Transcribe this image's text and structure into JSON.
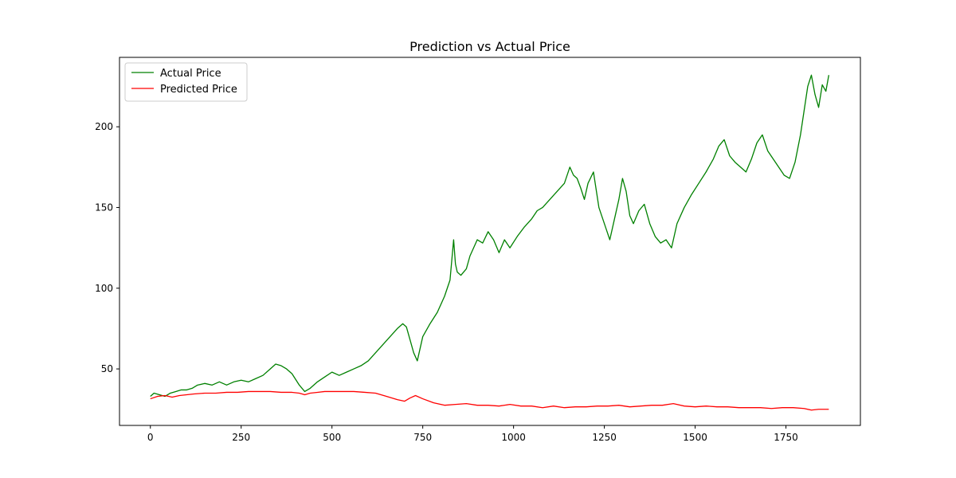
{
  "chart_data": {
    "type": "line",
    "title": "Prediction vs Actual Price",
    "xlabel": "",
    "ylabel": "",
    "xlim": [
      -85,
      1955
    ],
    "ylim": [
      15,
      243
    ],
    "x_ticks": [
      0,
      250,
      500,
      750,
      1000,
      1250,
      1500,
      1750
    ],
    "y_ticks": [
      50,
      100,
      150,
      200
    ],
    "grid": false,
    "legend_position": "top-left",
    "series": [
      {
        "name": "Actual Price",
        "color": "#008000",
        "x": [
          0,
          10,
          25,
          40,
          55,
          70,
          85,
          100,
          115,
          130,
          150,
          170,
          190,
          210,
          230,
          250,
          270,
          290,
          310,
          330,
          345,
          360,
          375,
          390,
          410,
          425,
          440,
          460,
          480,
          500,
          520,
          540,
          560,
          580,
          600,
          620,
          640,
          660,
          680,
          695,
          705,
          715,
          725,
          735,
          750,
          770,
          790,
          810,
          825,
          835,
          840,
          845,
          855,
          870,
          880,
          890,
          900,
          915,
          930,
          945,
          960,
          975,
          990,
          1010,
          1030,
          1050,
          1065,
          1080,
          1100,
          1120,
          1140,
          1155,
          1165,
          1175,
          1185,
          1195,
          1205,
          1220,
          1235,
          1250,
          1265,
          1280,
          1290,
          1300,
          1310,
          1320,
          1330,
          1345,
          1360,
          1375,
          1390,
          1405,
          1420,
          1435,
          1450,
          1470,
          1490,
          1510,
          1530,
          1550,
          1565,
          1580,
          1595,
          1610,
          1625,
          1640,
          1655,
          1670,
          1685,
          1700,
          1715,
          1730,
          1745,
          1760,
          1775,
          1790,
          1800,
          1810,
          1820,
          1830,
          1840,
          1850,
          1860,
          1868
        ],
        "y": [
          33,
          35,
          34,
          33,
          35,
          36,
          37,
          37,
          38,
          40,
          41,
          40,
          42,
          40,
          42,
          43,
          42,
          44,
          46,
          50,
          53,
          52,
          50,
          47,
          40,
          36,
          38,
          42,
          45,
          48,
          46,
          48,
          50,
          52,
          55,
          60,
          65,
          70,
          75,
          78,
          76,
          68,
          60,
          55,
          70,
          78,
          85,
          95,
          105,
          130,
          115,
          110,
          108,
          112,
          120,
          125,
          130,
          128,
          135,
          130,
          122,
          130,
          125,
          132,
          138,
          143,
          148,
          150,
          155,
          160,
          165,
          175,
          170,
          168,
          162,
          155,
          165,
          172,
          150,
          140,
          130,
          145,
          155,
          168,
          160,
          145,
          140,
          148,
          152,
          140,
          132,
          128,
          130,
          125,
          140,
          150,
          158,
          165,
          172,
          180,
          188,
          192,
          182,
          178,
          175,
          172,
          180,
          190,
          195,
          185,
          180,
          175,
          170,
          168,
          178,
          195,
          210,
          225,
          232,
          220,
          212,
          226,
          222,
          232
        ]
      },
      {
        "name": "Predicted Price",
        "color": "#ff0000",
        "x": [
          0,
          20,
          40,
          60,
          80,
          100,
          120,
          150,
          180,
          210,
          240,
          270,
          300,
          330,
          360,
          390,
          410,
          425,
          440,
          460,
          480,
          500,
          530,
          560,
          590,
          620,
          650,
          680,
          700,
          715,
          730,
          750,
          780,
          810,
          840,
          870,
          900,
          930,
          960,
          990,
          1020,
          1050,
          1080,
          1110,
          1140,
          1170,
          1200,
          1230,
          1260,
          1290,
          1320,
          1350,
          1380,
          1410,
          1440,
          1470,
          1500,
          1530,
          1560,
          1590,
          1620,
          1650,
          1680,
          1710,
          1740,
          1770,
          1800,
          1820,
          1840,
          1868
        ],
        "y": [
          31.5,
          33,
          33.5,
          32.5,
          33.5,
          34,
          34.5,
          35,
          35,
          35.5,
          35.5,
          36,
          36,
          36,
          35.5,
          35.5,
          35,
          34,
          35,
          35.5,
          36,
          36,
          36,
          36,
          35.5,
          35,
          33,
          31,
          30,
          32,
          33.5,
          31.5,
          29,
          27.5,
          28,
          28.5,
          27.5,
          27.5,
          27,
          28,
          27,
          27,
          26,
          27,
          26,
          26.5,
          26.5,
          27,
          27,
          27.5,
          26.5,
          27,
          27.5,
          27.5,
          28.5,
          27,
          26.5,
          27,
          26.5,
          26.5,
          26,
          26,
          26,
          25.5,
          26,
          26,
          25.5,
          24.5,
          25,
          25
        ]
      }
    ]
  }
}
